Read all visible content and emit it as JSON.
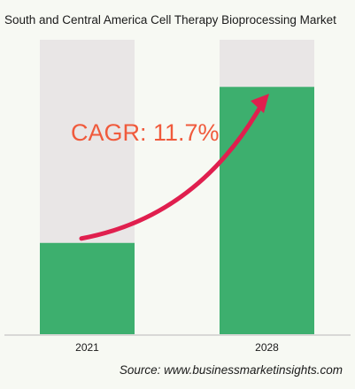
{
  "title": "South and Central America Cell Therapy Bioprocessing Market",
  "annotation": "CAGR: 11.7%",
  "source": "Source: www.businessmarketinsights.com",
  "colors": {
    "bar_fill": "#3daf6e",
    "bar_background": "#e9e6e6",
    "arrow": "#e01f4e",
    "annotation_text": "#f05a3c",
    "page_background": "#f7f9f3"
  },
  "chart_data": {
    "type": "bar",
    "categories": [
      "2021",
      "2028"
    ],
    "values": [
      31,
      84
    ],
    "ylim": [
      0,
      100
    ],
    "title": "South and Central America Cell Therapy Bioprocessing Market",
    "xlabel": "",
    "ylabel": "",
    "grid": false,
    "legend": "none"
  }
}
